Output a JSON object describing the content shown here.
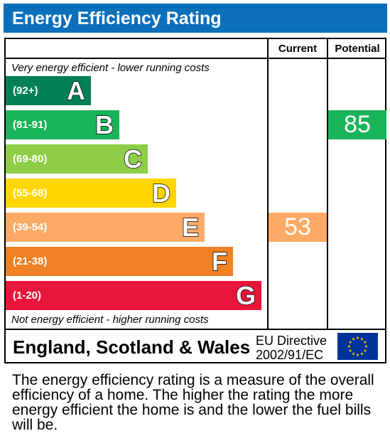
{
  "header": {
    "title": "Energy Efficiency Rating"
  },
  "columns": {
    "current": "Current",
    "potential": "Potential"
  },
  "notes": {
    "top": "Very energy efficient - lower running costs",
    "bottom": "Not energy efficient - higher running costs"
  },
  "chart_data": {
    "type": "bar",
    "title": "Energy Efficiency Rating",
    "categories": [
      "A",
      "B",
      "C",
      "D",
      "E",
      "F",
      "G"
    ],
    "bands": [
      {
        "letter": "A",
        "range": "(92+)",
        "color": "#008054"
      },
      {
        "letter": "B",
        "range": "(81-91)",
        "color": "#19b459"
      },
      {
        "letter": "C",
        "range": "(69-80)",
        "color": "#8dce46"
      },
      {
        "letter": "D",
        "range": "(55-68)",
        "color": "#ffd500"
      },
      {
        "letter": "E",
        "range": "(39-54)",
        "color": "#fcaa65"
      },
      {
        "letter": "F",
        "range": "(21-38)",
        "color": "#ef8023"
      },
      {
        "letter": "G",
        "range": "(1-20)",
        "color": "#e9153b"
      }
    ],
    "current": {
      "value": 53,
      "band": "E",
      "color": "#fcaa65"
    },
    "potential": {
      "value": 85,
      "band": "B",
      "color": "#19b459"
    }
  },
  "footer": {
    "country": "England, Scotland & Wales",
    "directive_line1": "EU Directive",
    "directive_line2": "2002/91/EC",
    "flag_icon": "eu-flag-icon"
  },
  "description": "The energy efficiency rating is a measure of the overall efficiency of a home. The higher the rating the more energy efficient the home is and the lower the fuel bills will be."
}
